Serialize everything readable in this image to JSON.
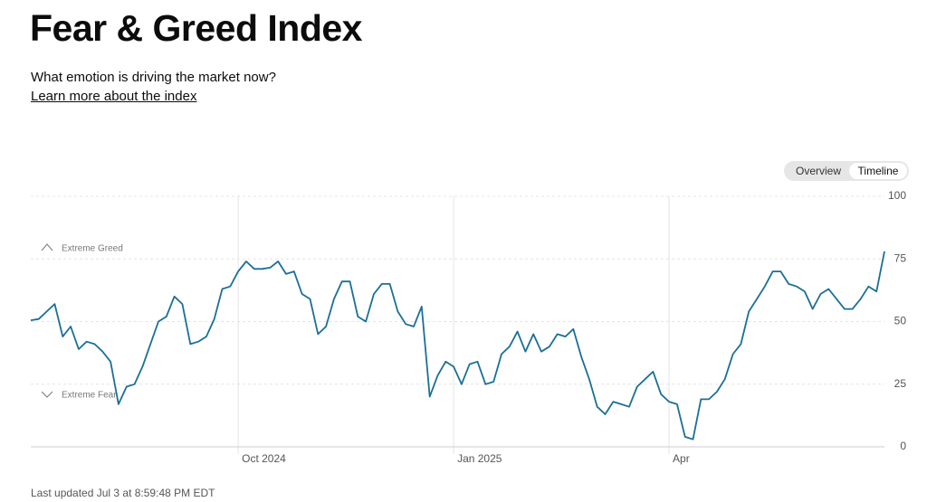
{
  "header": {
    "title": "Fear & Greed Index",
    "subtitle": "What emotion is driving the market now?",
    "link": "Learn more about the index"
  },
  "tabs": [
    "Overview",
    "Timeline"
  ],
  "footer": "Last updated Jul 3 at 8:59:48 PM EDT",
  "chart_data": {
    "type": "line",
    "color": "#1b6f96",
    "values": [
      50.5,
      51,
      54,
      57,
      44,
      48,
      39,
      42,
      41,
      38,
      34,
      17,
      24,
      25,
      32,
      41,
      50,
      52,
      60,
      57,
      41,
      42,
      44,
      51,
      63,
      64,
      70,
      74,
      71,
      71,
      71.5,
      74,
      69,
      70,
      61,
      59,
      45,
      48,
      59,
      66,
      66,
      52,
      50,
      61,
      65,
      65,
      54,
      49,
      48,
      56,
      20,
      28.5,
      34,
      32,
      25,
      33,
      34,
      25,
      26,
      37,
      40,
      46,
      38,
      45,
      38,
      40,
      45,
      44,
      47,
      36,
      27,
      16,
      13,
      18,
      17,
      16,
      24,
      27,
      30,
      21,
      18,
      17,
      4,
      3,
      19,
      19,
      22,
      27,
      37,
      41,
      54,
      59,
      64,
      70,
      70,
      65,
      64,
      62,
      55,
      61,
      63,
      59,
      55,
      55,
      59,
      64,
      62,
      78
    ],
    "xlim": [
      0,
      107
    ],
    "xticks": [
      {
        "value": 26,
        "label": "Oct 2024"
      },
      {
        "value": 53,
        "label": "Jan 2025"
      },
      {
        "value": 80,
        "label": "Apr"
      }
    ],
    "ylim": [
      0,
      100
    ],
    "yticks": [
      0,
      25,
      50,
      75,
      100
    ],
    "grid": true,
    "annotations": [
      "Extreme Greed",
      "Extreme Fear"
    ]
  }
}
